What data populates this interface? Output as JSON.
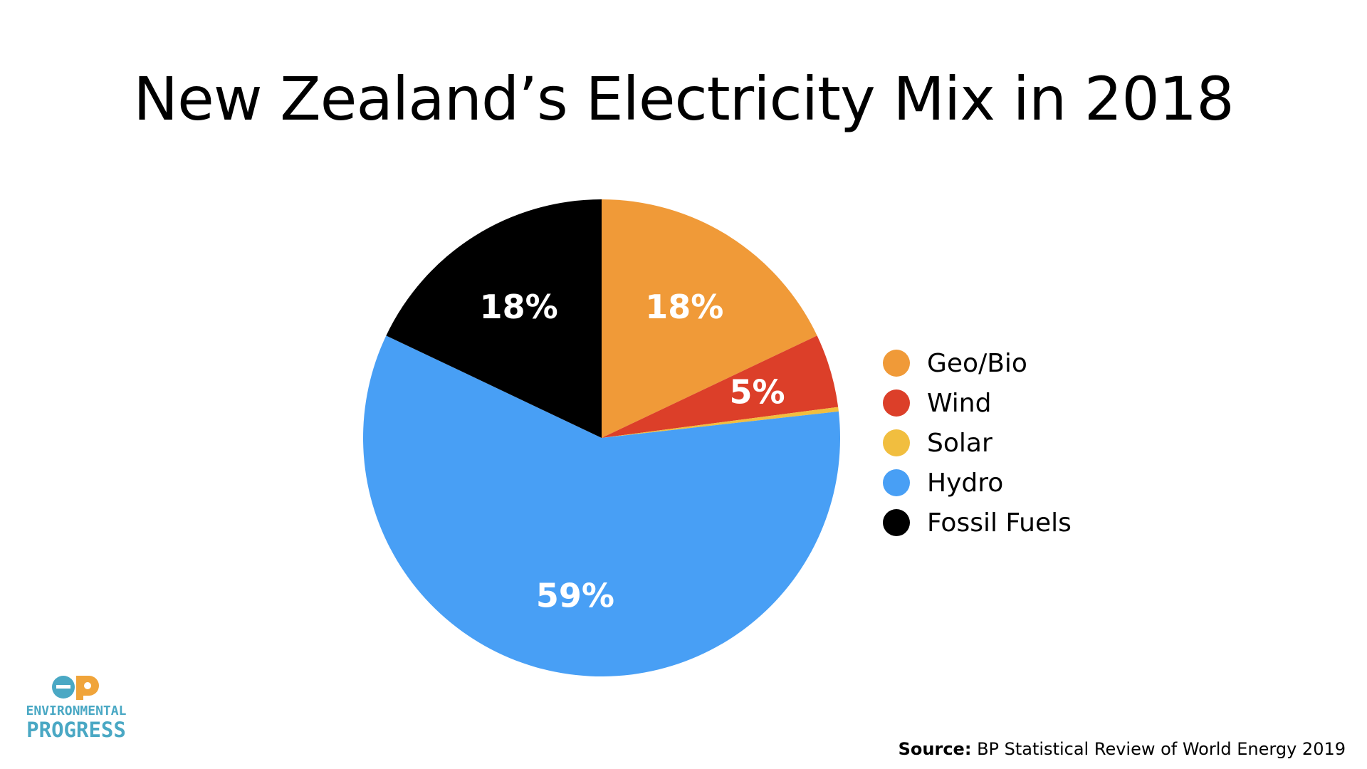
{
  "chart_data": {
    "type": "pie",
    "title": "New Zealand’s Electricity Mix in 2018",
    "slices": [
      {
        "name": "Geo/Bio",
        "value": 18,
        "label": "18%",
        "color": "#f09a38"
      },
      {
        "name": "Wind",
        "value": 5,
        "label": "5%",
        "color": "#dc3f29"
      },
      {
        "name": "Solar",
        "value": 0.3,
        "label": "",
        "color": "#f1be3f"
      },
      {
        "name": "Hydro",
        "value": 59,
        "label": "59%",
        "color": "#489ff5"
      },
      {
        "name": "Fossil Fuels",
        "value": 18,
        "label": "18%",
        "color": "#000000"
      }
    ],
    "legend_position": "right"
  },
  "logo": {
    "mark": "ep",
    "line1": "ENVIRONMENTAL",
    "line2": "PROGRESS",
    "color": "#4aa8c4"
  },
  "source": {
    "prefix": "Source:",
    "text": "BP Statistical Review of World Energy 2019"
  }
}
